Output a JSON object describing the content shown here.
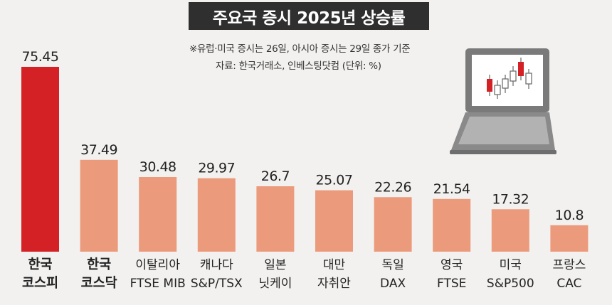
{
  "title": "주요국 증시 2025년 상승률",
  "notes": [
    "※유럽·미국 증시는 26일, 아시아 증시는 29일 종가 기준",
    "자료: 한국거래소, 인베스팅닷컴  (단위: %)"
  ],
  "chart_data": {
    "type": "bar",
    "title": "주요국 증시 2025년 상승률",
    "unit": "%",
    "categories": [
      [
        "한국",
        "코스피"
      ],
      [
        "한국",
        "코스닥"
      ],
      [
        "이탈리아",
        "FTSE MIB"
      ],
      [
        "캐나다",
        "S&P/TSX"
      ],
      [
        "일본",
        "닛케이"
      ],
      [
        "대만",
        "자취안"
      ],
      [
        "독일",
        "DAX"
      ],
      [
        "영국",
        "FTSE"
      ],
      [
        "미국",
        "S&P500"
      ],
      [
        "프랑스",
        "CAC"
      ]
    ],
    "values": [
      75.45,
      37.49,
      30.48,
      29.97,
      26.7,
      25.07,
      22.26,
      21.54,
      17.32,
      10.8
    ],
    "value_labels": [
      "75.45",
      "37.49",
      "30.48",
      "29.97",
      "26.7",
      "25.07",
      "22.26",
      "21.54",
      "17.32",
      "10.8"
    ],
    "ylim": [
      0,
      75.45
    ],
    "grid": false,
    "colors": {
      "highlight": "#d42126",
      "default": "#eb9a7b"
    },
    "highlight_indices": [
      0
    ]
  },
  "illustration": "laptop-candlestick-icon"
}
